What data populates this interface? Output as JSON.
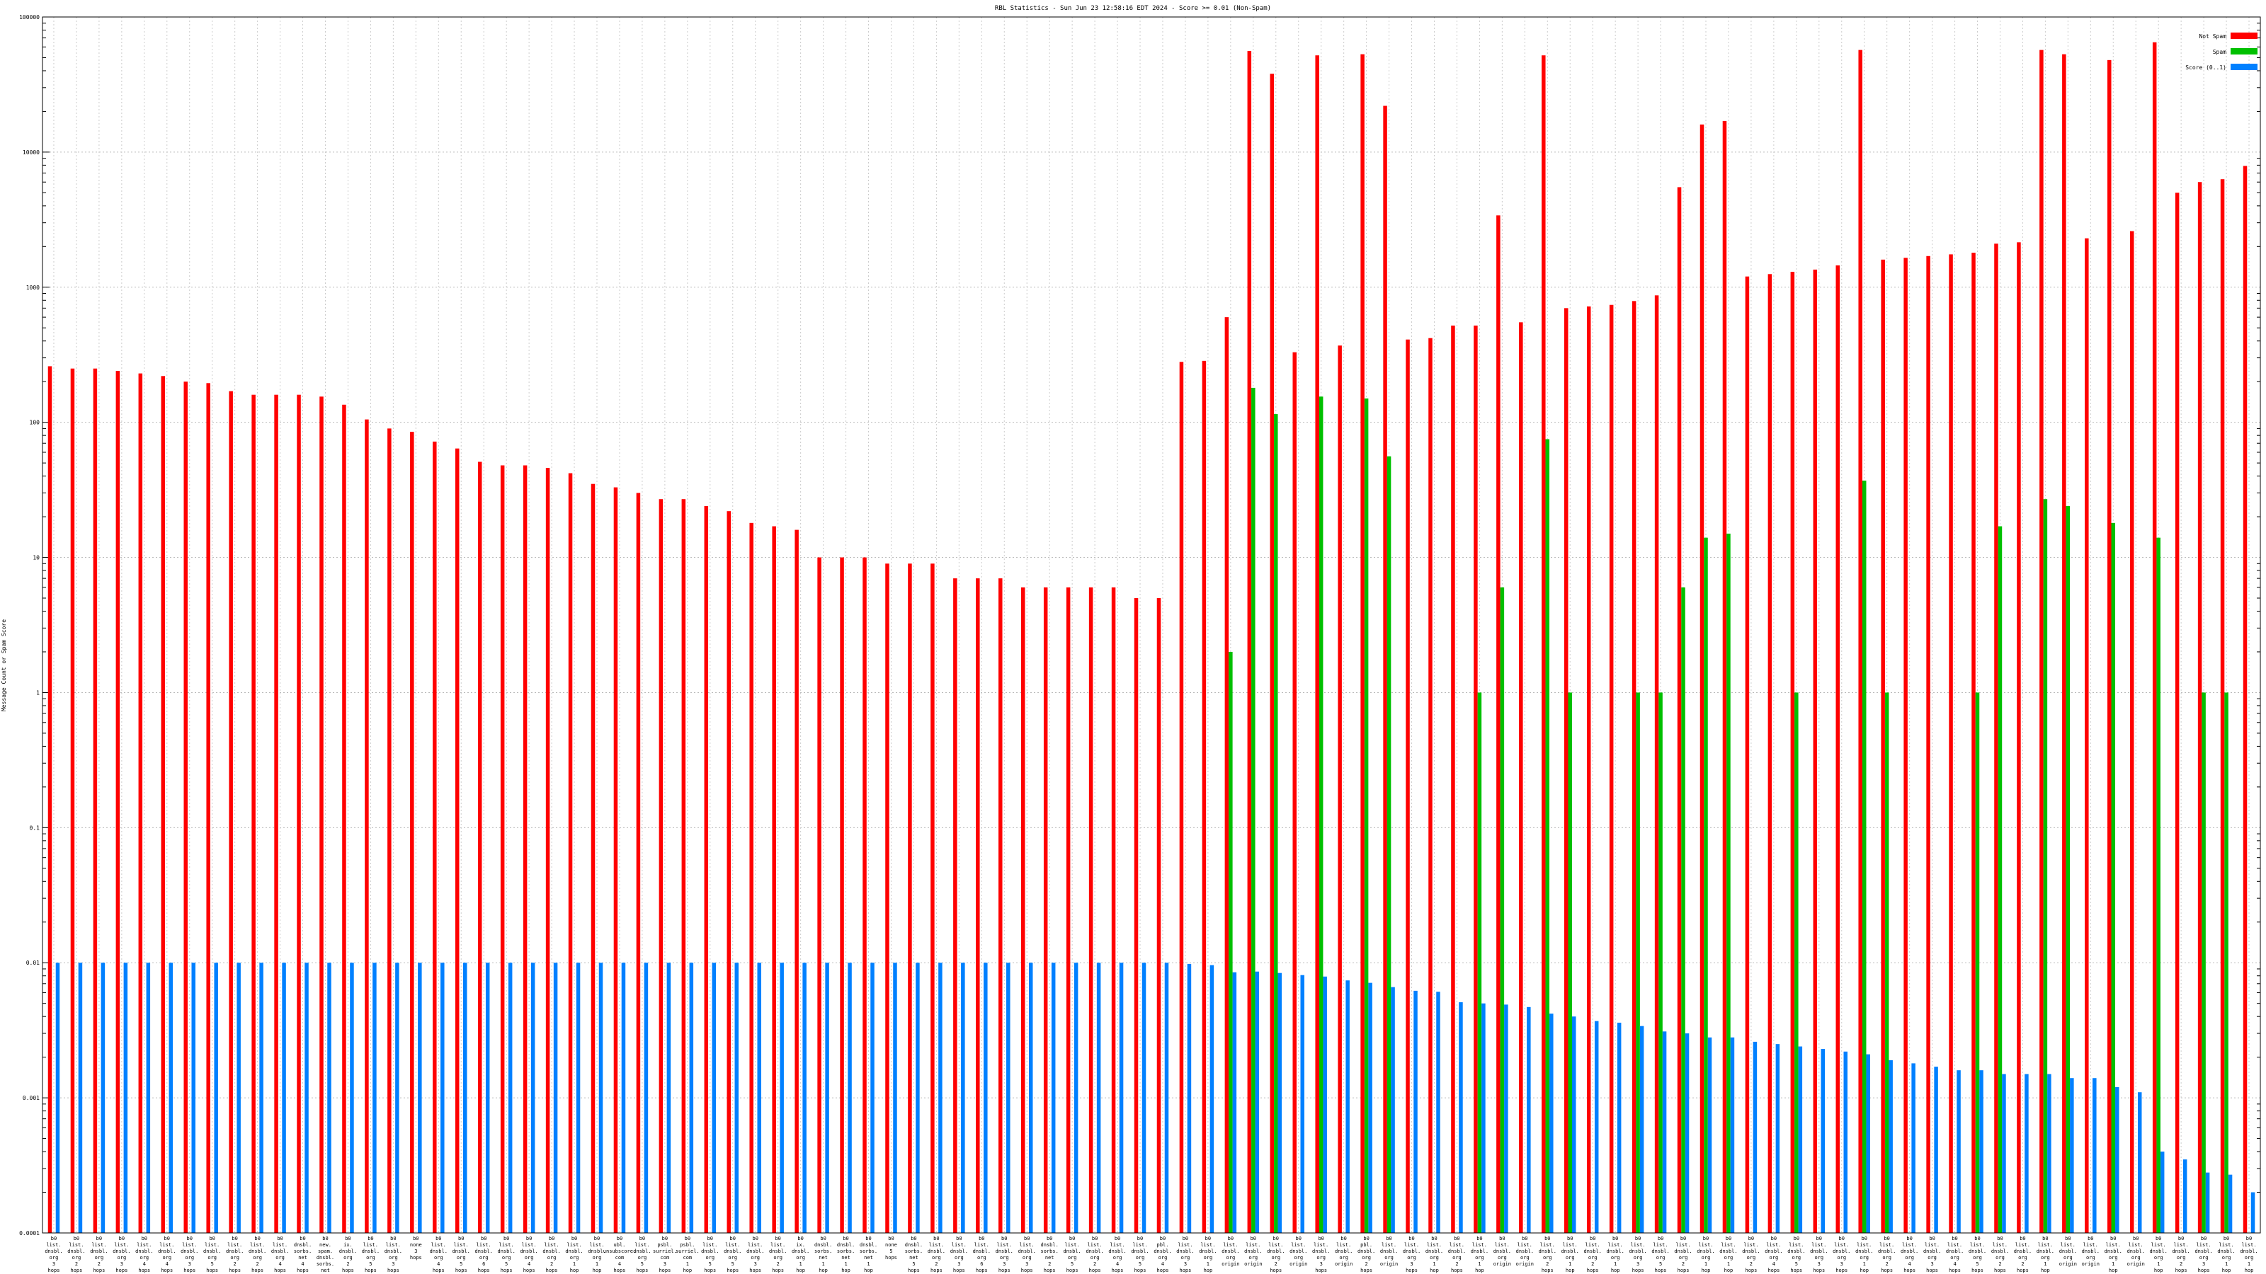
{
  "chart_data": {
    "type": "bar",
    "title": "RBL Statistics - Sun Jun 23 12:58:16 EDT 2024 - Score >= 0.01 (Non-Spam)",
    "xlabel": "",
    "ylabel": "Message Count or Spam Score",
    "y_scale": "log",
    "ylim": [
      0.0001,
      100000
    ],
    "y_ticks": [
      "100000",
      "10000",
      "1000",
      "100",
      "10",
      "1",
      "0.1",
      "0.01",
      "0.001",
      "0.0001"
    ],
    "grid": true,
    "legend_position": "top-right",
    "colors": {
      "not_spam": "#ff0000",
      "spam": "#00c000",
      "score": "#0080ff"
    },
    "series": [
      {
        "name": "Not Spam",
        "values": [
          260,
          250,
          250,
          240,
          230,
          220,
          200,
          195,
          170,
          160,
          160,
          160,
          155,
          135,
          105,
          90,
          85,
          72,
          64,
          51,
          48,
          48,
          46,
          42,
          35,
          33,
          30,
          27,
          27,
          24,
          22,
          18,
          17,
          16,
          10,
          10,
          10,
          9,
          9,
          9,
          7,
          7,
          7,
          6,
          6,
          6,
          6,
          6,
          5,
          5,
          280,
          285,
          600,
          56000,
          38000,
          330,
          52000,
          370,
          53000,
          22000,
          410,
          420,
          520,
          520,
          3400,
          550,
          52000,
          700,
          720,
          740,
          790,
          870,
          5500,
          16000,
          17000,
          1200,
          1250,
          1300,
          1350,
          1450,
          57000,
          1600,
          1650,
          1700,
          1750,
          1800,
          2100,
          2150,
          57000,
          53000,
          2300,
          48000,
          2600,
          65000,
          5000,
          6000,
          6300,
          7900
        ]
      },
      {
        "name": "Spam",
        "values": [
          null,
          null,
          null,
          null,
          null,
          null,
          null,
          null,
          null,
          null,
          null,
          null,
          null,
          null,
          null,
          null,
          null,
          null,
          null,
          null,
          null,
          null,
          null,
          null,
          null,
          null,
          null,
          null,
          null,
          null,
          null,
          null,
          null,
          null,
          null,
          null,
          null,
          null,
          null,
          null,
          null,
          null,
          null,
          null,
          null,
          null,
          null,
          null,
          null,
          null,
          null,
          null,
          2,
          180,
          115,
          null,
          155,
          null,
          150,
          56,
          null,
          null,
          null,
          1,
          6,
          null,
          75,
          1,
          null,
          null,
          1,
          1,
          6,
          14,
          15,
          null,
          null,
          1,
          null,
          null,
          37,
          1,
          null,
          null,
          null,
          1,
          17,
          null,
          27,
          24,
          null,
          18,
          null,
          14,
          null,
          1,
          1,
          null
        ]
      },
      {
        "name": "Score (0..1)",
        "values": [
          0.01,
          0.01,
          0.01,
          0.01,
          0.01,
          0.01,
          0.01,
          0.01,
          0.01,
          0.01,
          0.01,
          0.01,
          0.01,
          0.01,
          0.01,
          0.01,
          0.01,
          0.01,
          0.01,
          0.01,
          0.01,
          0.01,
          0.01,
          0.01,
          0.01,
          0.01,
          0.01,
          0.01,
          0.01,
          0.01,
          0.01,
          0.01,
          0.01,
          0.01,
          0.01,
          0.01,
          0.01,
          0.01,
          0.01,
          0.01,
          0.01,
          0.01,
          0.01,
          0.01,
          0.01,
          0.01,
          0.01,
          0.01,
          0.01,
          0.01,
          0.0098,
          0.0096,
          0.0085,
          0.0086,
          0.0084,
          0.0081,
          0.0079,
          0.0074,
          0.0071,
          0.0066,
          0.0062,
          0.0061,
          0.0051,
          0.005,
          0.0049,
          0.0047,
          0.0042,
          0.004,
          0.0037,
          0.0036,
          0.0034,
          0.0031,
          0.003,
          0.0028,
          0.0028,
          0.0026,
          0.0025,
          0.0024,
          0.0023,
          0.0022,
          0.0021,
          0.0019,
          0.0018,
          0.0017,
          0.0016,
          0.0016,
          0.0015,
          0.0015,
          0.0015,
          0.0014,
          0.0014,
          0.0012,
          0.0011,
          0.0004,
          0.00035,
          0.00028,
          0.00027,
          0.0002
        ]
      }
    ],
    "categories": [
      "b0 list. dnsbl. org 3 hops",
      "b0 list. dnsbl. org 2 hops",
      "b0 list. dnsbl. org 2 hops",
      "b0 list. dnsbl. org 3 hops",
      "b0 list. dnsbl. org 4 hops",
      "b0 list. dnsbl. org 4 hops",
      "b0 list. dnsbl. org 3 hops",
      "b0 list. dnsbl. org 5 hops",
      "b0 list. dnsbl. org 2 hops",
      "b0 list. dnsbl. org 2 hops",
      "b0 list. dnsbl. org 4 hops",
      "b0 dnsbl. sorbs. net 4 hops",
      "b0 new. spam. dnsbl. sorbs. net 4 hops",
      "b0 ix. dnsbl. org 2 hops",
      "b0 list. dnsbl. org 5 hops",
      "b0 list. dnsbl. org 3 hops",
      "b0 none 3 hops",
      "b0 list. dnsbl. org 4 hops",
      "b0 list. dnsbl. org 5 hops",
      "b0 list. dnsbl. org 6 hops",
      "b0 list. dnsbl. org 5 hops",
      "b0 list. dnsbl. org 4 hops",
      "b0 list. dnsbl. org 2 hops",
      "b0 list. dnsbl. org 1 hop",
      "b0 list. dnsbl. org 1 hop",
      "b0 ubl. unsubscore. com 4 hops",
      "b0 list. dnsbl. org 5 hops",
      "b0 psbl. surriel. com 3 hops",
      "b0 psbl. surriel. com 1 hop",
      "b0 list. dnsbl. org 5 hops",
      "b0 list. dnsbl. org 5 hops",
      "b0 list. dnsbl. org 3 hops",
      "b0 list. dnsbl. org 2 hops",
      "b0 ix. dnsbl. org 1 hop",
      "b0 dnsbl. sorbs. net 1 hop",
      "b0 dnsbl. sorbs. net 1 hop",
      "b0 dnsbl. sorbs. net 1 hop",
      "b0 none 5 hops",
      "b0 dnsbl. sorbs. net 5 hops",
      "b0 list. dnsbl. org 2 hops",
      "b0 list. dnsbl. org 3 hops",
      "b0 list. dnsbl. org 6 hops",
      "b0 list. dnsbl. org 3 hops",
      "b0 list. dnsbl. org 3 hops",
      "b0 dnsbl. sorbs. net 2 hops",
      "b0 list. dnsbl. org 5 hops",
      "b0 list. dnsbl. org 2 hops",
      "b0 list. dnsbl. org 4 hops",
      "b0 list. dnsbl. org 5 hops",
      "b0 pbl. dnsbl. org 4 hops",
      "b0 list. dnsbl. org 3 hops",
      "b0 list. dnsbl. org 1 hop",
      "b0 list. dnsbl. org origin",
      "b0 list. dnsbl. org origin",
      "b0 list. dnsbl. org 2 hops",
      "b0 list. dnsbl. org origin",
      "b0 list. dnsbl. org 3 hops",
      "b0 list. dnsbl. org origin",
      "b0 pbl. dnsbl. org 2 hops",
      "b0 list. dnsbl. org origin",
      "b0 list. dnsbl. org 3 hops",
      "b0 list. dnsbl. org 1 hop",
      "b0 list. dnsbl. org 2 hops",
      "b0 list. dnsbl. org 1 hop",
      "b0 list. dnsbl. org origin",
      "b0 list. dnsbl. org origin",
      "b0 list. dnsbl. org 2 hops",
      "b0 list. dnsbl. org 1 hop",
      "b0 list. dnsbl. org 2 hops",
      "b0 list. dnsbl. org 1 hop",
      "b0 list. dnsbl. org 3 hops",
      "b0 list. dnsbl. org 5 hops",
      "b0 list. dnsbl. org 2 hops",
      "b0 list. dnsbl. org 1 hop",
      "b0 list. dnsbl. org 1 hop",
      "b0 list. dnsbl. org 2 hops",
      "b0 list. dnsbl. org 4 hops",
      "b0 list. dnsbl. org 5 hops",
      "b0 list. dnsbl. org 3 hops",
      "b0 list. dnsbl. org 3 hops",
      "b0 list. dnsbl. org 1 hop",
      "b0 list. dnsbl. org 2 hops",
      "b0 list. dnsbl. org 4 hops",
      "b0 list. dnsbl. org 3 hops",
      "b0 list. dnsbl. org 4 hops",
      "b0 list. dnsbl. org 5 hops",
      "b0 list. dnsbl. org 2 hops",
      "b0 list. dnsbl. org 2 hops",
      "b0 list. dnsbl. org 1 hop",
      "b0 list. dnsbl. org origin",
      "b0 list. dnsbl. org origin",
      "b0 list. dnsbl. org 1 hop",
      "b0 list. dnsbl. org origin",
      "b0 list. dnsbl. org 1 hop",
      "b0 list. dnsbl. org 2 hops",
      "b0 list. dnsbl. org 3 hops",
      "b0 list. dnsbl. org 1 hop",
      "b0 list. dnsbl. org 1 hop"
    ]
  }
}
